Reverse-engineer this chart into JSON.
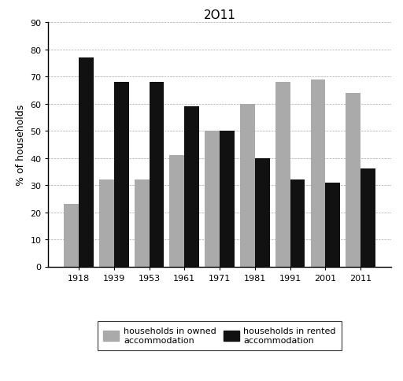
{
  "title": "2O11",
  "ylabel": "% of households",
  "years": [
    "1918",
    "1939",
    "1953",
    "1961",
    "1971",
    "1981",
    "1991",
    "2001",
    "2011"
  ],
  "owned": [
    23,
    32,
    32,
    41,
    50,
    60,
    68,
    69,
    64
  ],
  "rented": [
    77,
    68,
    68,
    59,
    50,
    40,
    32,
    31,
    36
  ],
  "owned_color": "#aaaaaa",
  "rented_color": "#111111",
  "ylim": [
    0,
    90
  ],
  "yticks": [
    0,
    10,
    20,
    30,
    40,
    50,
    60,
    70,
    80,
    90
  ],
  "legend_owned": "households in owned\naccommodation",
  "legend_rented": "households in rented\naccommodation",
  "bar_width": 0.42,
  "title_fontsize": 11,
  "ylabel_fontsize": 9,
  "tick_fontsize": 8,
  "legend_fontsize": 8
}
